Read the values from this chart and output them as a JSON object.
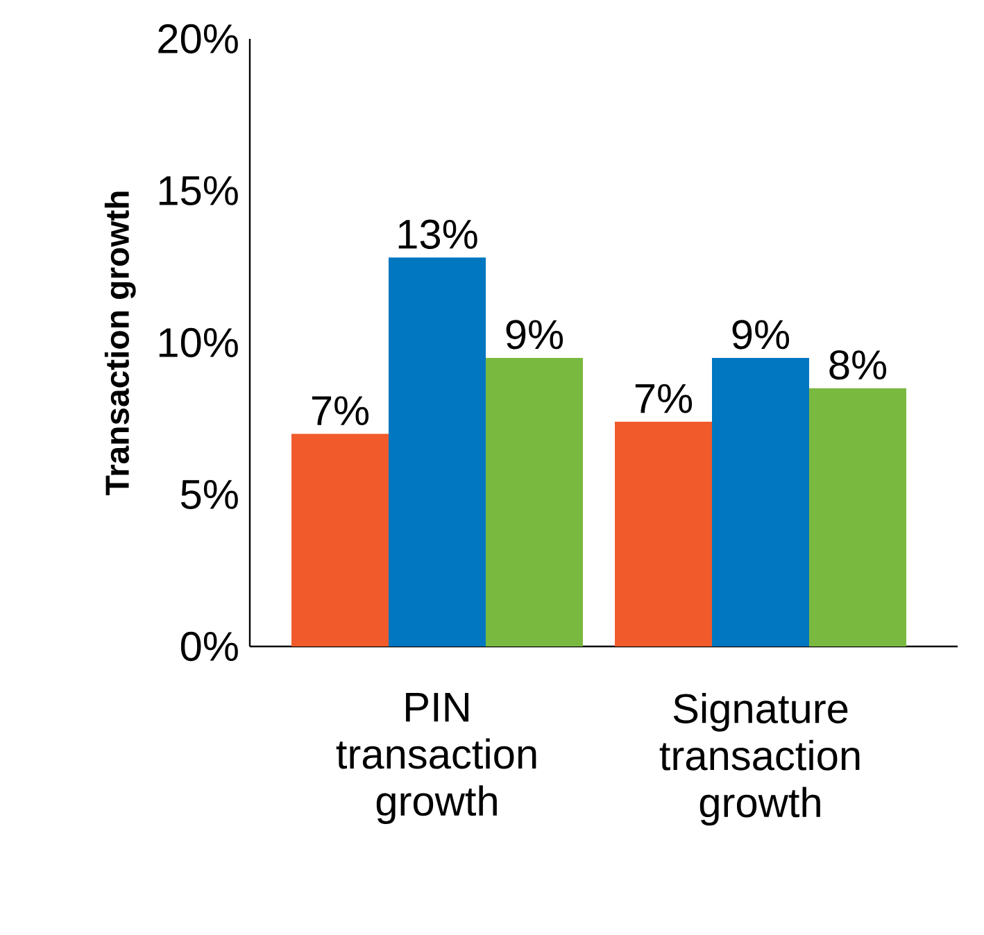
{
  "chart_data": {
    "type": "bar",
    "ylabel": "Transaction growth",
    "categories": [
      "PIN transaction growth",
      "Signature transaction growth"
    ],
    "series": [
      {
        "color": "#f15a2b",
        "values": [
          7.0,
          7.4
        ],
        "value_labels": [
          "7%",
          "7%"
        ]
      },
      {
        "color": "#0077c0",
        "values": [
          12.8,
          9.5
        ],
        "value_labels": [
          "13%",
          "9%"
        ]
      },
      {
        "color": "#7ab940",
        "values": [
          9.5,
          8.5
        ],
        "value_labels": [
          "9%",
          "8%"
        ]
      }
    ],
    "ylim": [
      0,
      20
    ],
    "yticks": [
      {
        "value": 0,
        "label": "0%"
      },
      {
        "value": 5,
        "label": "5%"
      },
      {
        "value": 10,
        "label": "10%"
      },
      {
        "value": 15,
        "label": "15%"
      },
      {
        "value": 20,
        "label": "20%"
      }
    ]
  }
}
